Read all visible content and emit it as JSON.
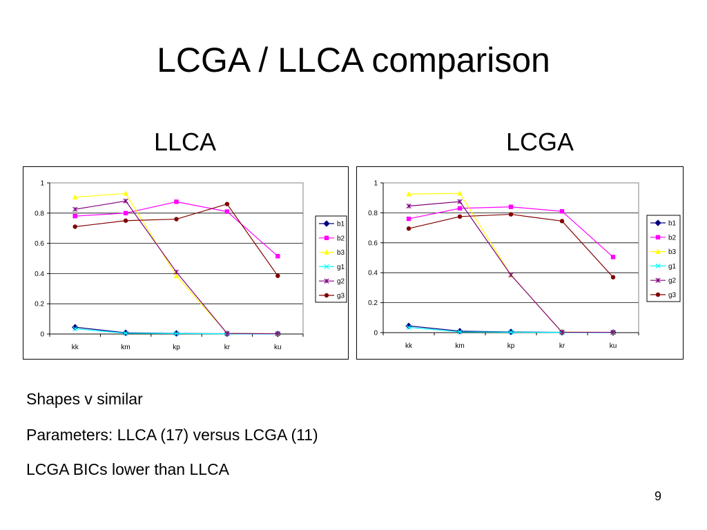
{
  "slide": {
    "title": "LCGA / LLCA comparison",
    "bullets": [
      "Shapes v similar",
      "Parameters: LLCA (17) versus LCGA (11)",
      "LCGA BICs lower than LLCA"
    ],
    "page_number": "9"
  },
  "chart_data": [
    {
      "type": "line",
      "title": "LLCA",
      "categories": [
        "kk",
        "km",
        "kp",
        "kr",
        "ku"
      ],
      "ylim": [
        0,
        1
      ],
      "yticks": [
        "0",
        "0.2",
        "0.4",
        "0.6",
        "0.8",
        "1"
      ],
      "grid": true,
      "legend": "right",
      "series": [
        {
          "name": "b1",
          "color": "#000080",
          "marker": "diamond",
          "values": [
            0.045,
            0.008,
            0.004,
            0.002,
            0.001
          ]
        },
        {
          "name": "b2",
          "color": "#FF00FF",
          "marker": "square",
          "values": [
            0.78,
            0.8,
            0.875,
            0.81,
            0.515
          ]
        },
        {
          "name": "b3",
          "color": "#FFFF00",
          "marker": "triangle",
          "values": [
            0.905,
            0.93,
            0.385,
            0.005,
            0.002
          ]
        },
        {
          "name": "g1",
          "color": "#00FFFF",
          "marker": "x",
          "values": [
            0.035,
            0.005,
            0.003,
            0.001,
            0.001
          ]
        },
        {
          "name": "g2",
          "color": "#800080",
          "marker": "star",
          "values": [
            0.825,
            0.88,
            0.41,
            0.004,
            0.002
          ]
        },
        {
          "name": "g3",
          "color": "#800000",
          "marker": "circle",
          "values": [
            0.71,
            0.75,
            0.76,
            0.86,
            0.385
          ]
        }
      ]
    },
    {
      "type": "line",
      "title": "LCGA",
      "categories": [
        "kk",
        "km",
        "kp",
        "kr",
        "ku"
      ],
      "ylim": [
        0,
        1
      ],
      "yticks": [
        "0",
        "0.2",
        "0.4",
        "0.6",
        "0.8",
        "1"
      ],
      "grid": true,
      "legend": "right",
      "series": [
        {
          "name": "b1",
          "color": "#000080",
          "marker": "diamond",
          "values": [
            0.045,
            0.01,
            0.005,
            0.002,
            0.001
          ]
        },
        {
          "name": "b2",
          "color": "#FF00FF",
          "marker": "square",
          "values": [
            0.76,
            0.83,
            0.84,
            0.81,
            0.505
          ]
        },
        {
          "name": "b3",
          "color": "#FFFF00",
          "marker": "triangle",
          "values": [
            0.925,
            0.93,
            0.385,
            0.004,
            0.002
          ]
        },
        {
          "name": "g1",
          "color": "#00FFFF",
          "marker": "x",
          "values": [
            0.035,
            0.005,
            0.003,
            0.001,
            0.001
          ]
        },
        {
          "name": "g2",
          "color": "#800080",
          "marker": "star",
          "values": [
            0.845,
            0.875,
            0.385,
            0.003,
            0.002
          ]
        },
        {
          "name": "g3",
          "color": "#800000",
          "marker": "circle",
          "values": [
            0.695,
            0.775,
            0.79,
            0.745,
            0.37
          ]
        }
      ]
    }
  ]
}
